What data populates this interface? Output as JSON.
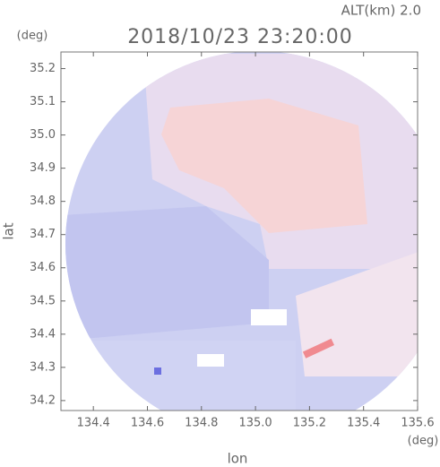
{
  "chart_data": {
    "type": "radar-map",
    "title": "2018/10/23 23:20:00",
    "altitude_label": "ALT(km) 2.0",
    "x_label": "lon",
    "x_unit": "(deg)",
    "y_label": "lat",
    "y_unit": "(deg)",
    "xlim": [
      134.28,
      135.6
    ],
    "xticks": [
      134.4,
      134.6,
      134.8,
      {
        "value": 135,
        "label": "135.0"
      },
      135.2,
      135.4,
      135.6
    ],
    "ylim": [
      34.17,
      35.25
    ],
    "yticks": [
      34.2,
      34.3,
      34.4,
      34.5,
      34.6,
      34.7,
      34.8,
      34.9,
      {
        "value": 35,
        "label": "35.0"
      },
      35.1,
      35.2
    ],
    "color": "#666666"
  }
}
